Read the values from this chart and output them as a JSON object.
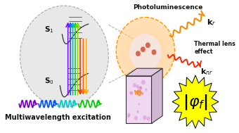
{
  "bg_color": "#ffffff",
  "fig_width": 3.4,
  "fig_height": 1.89,
  "dpi": 100,
  "s1_label": "S$_1$",
  "s0_label": "S$_0$",
  "photolum_text": "Photoluminescence",
  "kr_text": "k$_r$",
  "thermal_text": "Thermal lens\neffect",
  "knr_text": "k$_{nr}$",
  "multiwave_text": "Multiwavelength excitation",
  "phi_text": "|$\\varphi_f$|",
  "arrow_colors_up": [
    "#8800ff",
    "#0055ff",
    "#00aaff",
    "#00dd00",
    "#88dd00"
  ],
  "arrow_colors_down": [
    "#ff2200",
    "#ff6600",
    "#ffaa00"
  ],
  "wave_colors": [
    "#7700cc",
    "#0055ff",
    "#00cccc",
    "#00cc00"
  ],
  "starburst_color": "#ffff00",
  "starburst_edge": "#000000",
  "pl_arrow_color": "#ff8800",
  "thermal_arrow_color": "#ff2200",
  "dashed_line_color": "#aaaaaa"
}
